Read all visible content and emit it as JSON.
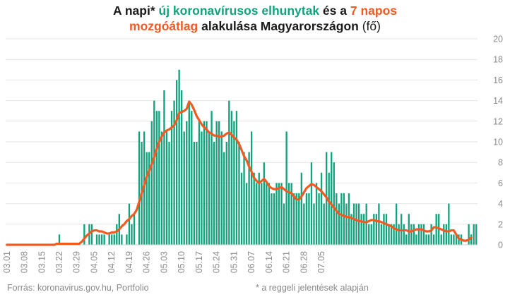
{
  "title": {
    "line1": {
      "p1": "A napi* ",
      "p2": "új koronavírusos elhunytak",
      "p3": " és a ",
      "p4": "7 napos"
    },
    "line2": {
      "p1": "mozgóátlag",
      "p2": " alakulása Magyarországon ",
      "p3": "(fő)"
    }
  },
  "footer": {
    "source": "Forrás: koronavirus.gov.hu, Portfolio",
    "note": "* a reggeli jelentések alapján"
  },
  "colors": {
    "bars": "#12a37e",
    "line": "#f15a22",
    "grid": "#e6e6e6",
    "text": "#8a8a8a"
  },
  "chart_data": {
    "type": "bar",
    "ylim": [
      0,
      20
    ],
    "y_ticks": [
      0,
      2,
      4,
      6,
      8,
      10,
      12,
      14,
      16,
      18,
      20
    ],
    "x_ticks": [
      "03.01",
      "03.08",
      "03.15",
      "03.22",
      "03.29",
      "04.05",
      "04.12",
      "04.19",
      "04.26",
      "05.03",
      "05.10",
      "05.17",
      "05.24",
      "05.31",
      "06.07",
      "06.14",
      "06.21",
      "06.28",
      "07.05"
    ],
    "grid": true,
    "legend": "in title",
    "series": [
      {
        "name": "új koronavírusos elhunytak",
        "kind": "bar",
        "values": [
          0,
          0,
          0,
          0,
          0,
          0,
          0,
          0,
          0,
          0,
          0,
          0,
          0,
          0,
          0,
          0,
          0,
          0,
          0,
          0,
          0,
          1,
          0,
          0,
          0,
          0,
          0,
          0,
          0,
          0,
          0,
          2,
          0,
          2,
          2,
          0,
          1,
          1,
          1,
          1,
          0,
          1,
          1,
          1,
          2,
          3,
          1,
          0,
          1,
          4,
          2,
          3,
          0,
          11,
          10,
          11,
          9,
          9,
          12,
          14,
          13,
          13,
          11,
          15,
          11,
          10,
          13,
          14,
          16,
          17,
          15,
          11,
          12,
          14,
          13,
          10,
          10,
          12,
          11,
          12,
          12,
          11,
          13,
          10,
          12,
          12,
          11,
          9,
          10,
          14,
          13,
          12,
          13,
          10,
          7,
          9,
          6,
          9,
          11,
          7,
          6,
          7,
          6,
          8,
          6,
          6,
          5,
          5,
          6,
          6,
          6,
          4,
          11,
          6,
          6,
          5,
          5,
          5,
          7,
          4,
          5,
          5,
          8,
          4,
          6,
          5,
          7,
          4,
          9,
          7,
          9,
          8,
          5,
          4,
          5,
          5,
          4,
          5,
          3,
          4,
          4,
          4,
          3,
          3,
          4,
          2,
          2,
          3,
          3,
          4,
          2,
          3,
          3,
          2,
          2,
          2,
          4,
          2,
          3,
          2,
          1,
          3,
          2,
          2,
          1,
          2,
          2,
          2,
          1,
          1,
          2,
          1,
          3,
          3,
          1,
          2,
          2,
          4,
          1,
          1,
          1,
          1,
          1,
          0,
          0,
          2,
          1,
          2,
          2
        ]
      },
      {
        "name": "7 napos mozgóátlag",
        "kind": "line",
        "values": [
          0,
          0,
          0,
          0,
          0,
          0,
          0,
          0,
          0,
          0,
          0,
          0,
          0,
          0,
          0,
          0,
          0,
          0,
          0,
          0,
          0.1,
          0.1,
          0.1,
          0.1,
          0.1,
          0.1,
          0.1,
          0.1,
          0.1,
          0.1,
          0.3,
          0.6,
          0.9,
          1.1,
          1.3,
          1.4,
          1.4,
          1.3,
          1.3,
          1.2,
          1.1,
          1.1,
          1.2,
          1.2,
          1.3,
          1.5,
          1.8,
          2,
          2.3,
          2.5,
          2.8,
          3,
          3.4,
          4.2,
          5,
          5.8,
          6.6,
          7.2,
          7.8,
          8.5,
          9.3,
          10,
          10.5,
          10.9,
          11.1,
          11.2,
          11.4,
          11.6,
          12.1,
          12.8,
          12.9,
          13,
          13.2,
          13.9,
          13.6,
          13.1,
          12.5,
          12.1,
          11.7,
          11.4,
          11.2,
          10.9,
          10.8,
          10.6,
          10.6,
          10.5,
          10.5,
          10.6,
          10.8,
          10.9,
          10.7,
          10.4,
          10.2,
          9.8,
          9.2,
          8.6,
          8.2,
          7.6,
          7.1,
          6.5,
          6.2,
          6,
          6.2,
          6.4,
          6.1,
          5.7,
          5.5,
          5.4,
          5.4,
          5.5,
          5.6,
          5.4,
          5.2,
          5.1,
          5,
          4.7,
          4.4,
          4.4,
          4.7,
          5.1,
          5.5,
          5.7,
          5.9,
          5.8,
          5.6,
          5.4,
          5.2,
          4.9,
          4.6,
          4.2,
          3.9,
          3.6,
          3.3,
          3,
          2.9,
          2.8,
          2.7,
          2.7,
          2.6,
          2.5,
          2.4,
          2.3,
          2.3,
          2.2,
          2.2,
          2.3,
          2.4,
          2.4,
          2.3,
          2.3,
          2.2,
          2.1,
          2,
          1.9,
          1.8,
          1.6,
          1.5,
          1.4,
          1.4,
          1.4,
          1.4,
          1.3,
          1.3,
          1.4,
          1.5,
          1.5,
          1.5,
          1.4,
          1.3,
          1.3,
          1.4,
          1.7,
          1.7,
          1.6,
          1.5,
          1.4,
          1.3,
          1.3,
          1.4,
          1.4,
          1,
          0.6,
          0.5,
          0.4,
          0.4,
          0.5,
          0.7
        ]
      }
    ]
  }
}
